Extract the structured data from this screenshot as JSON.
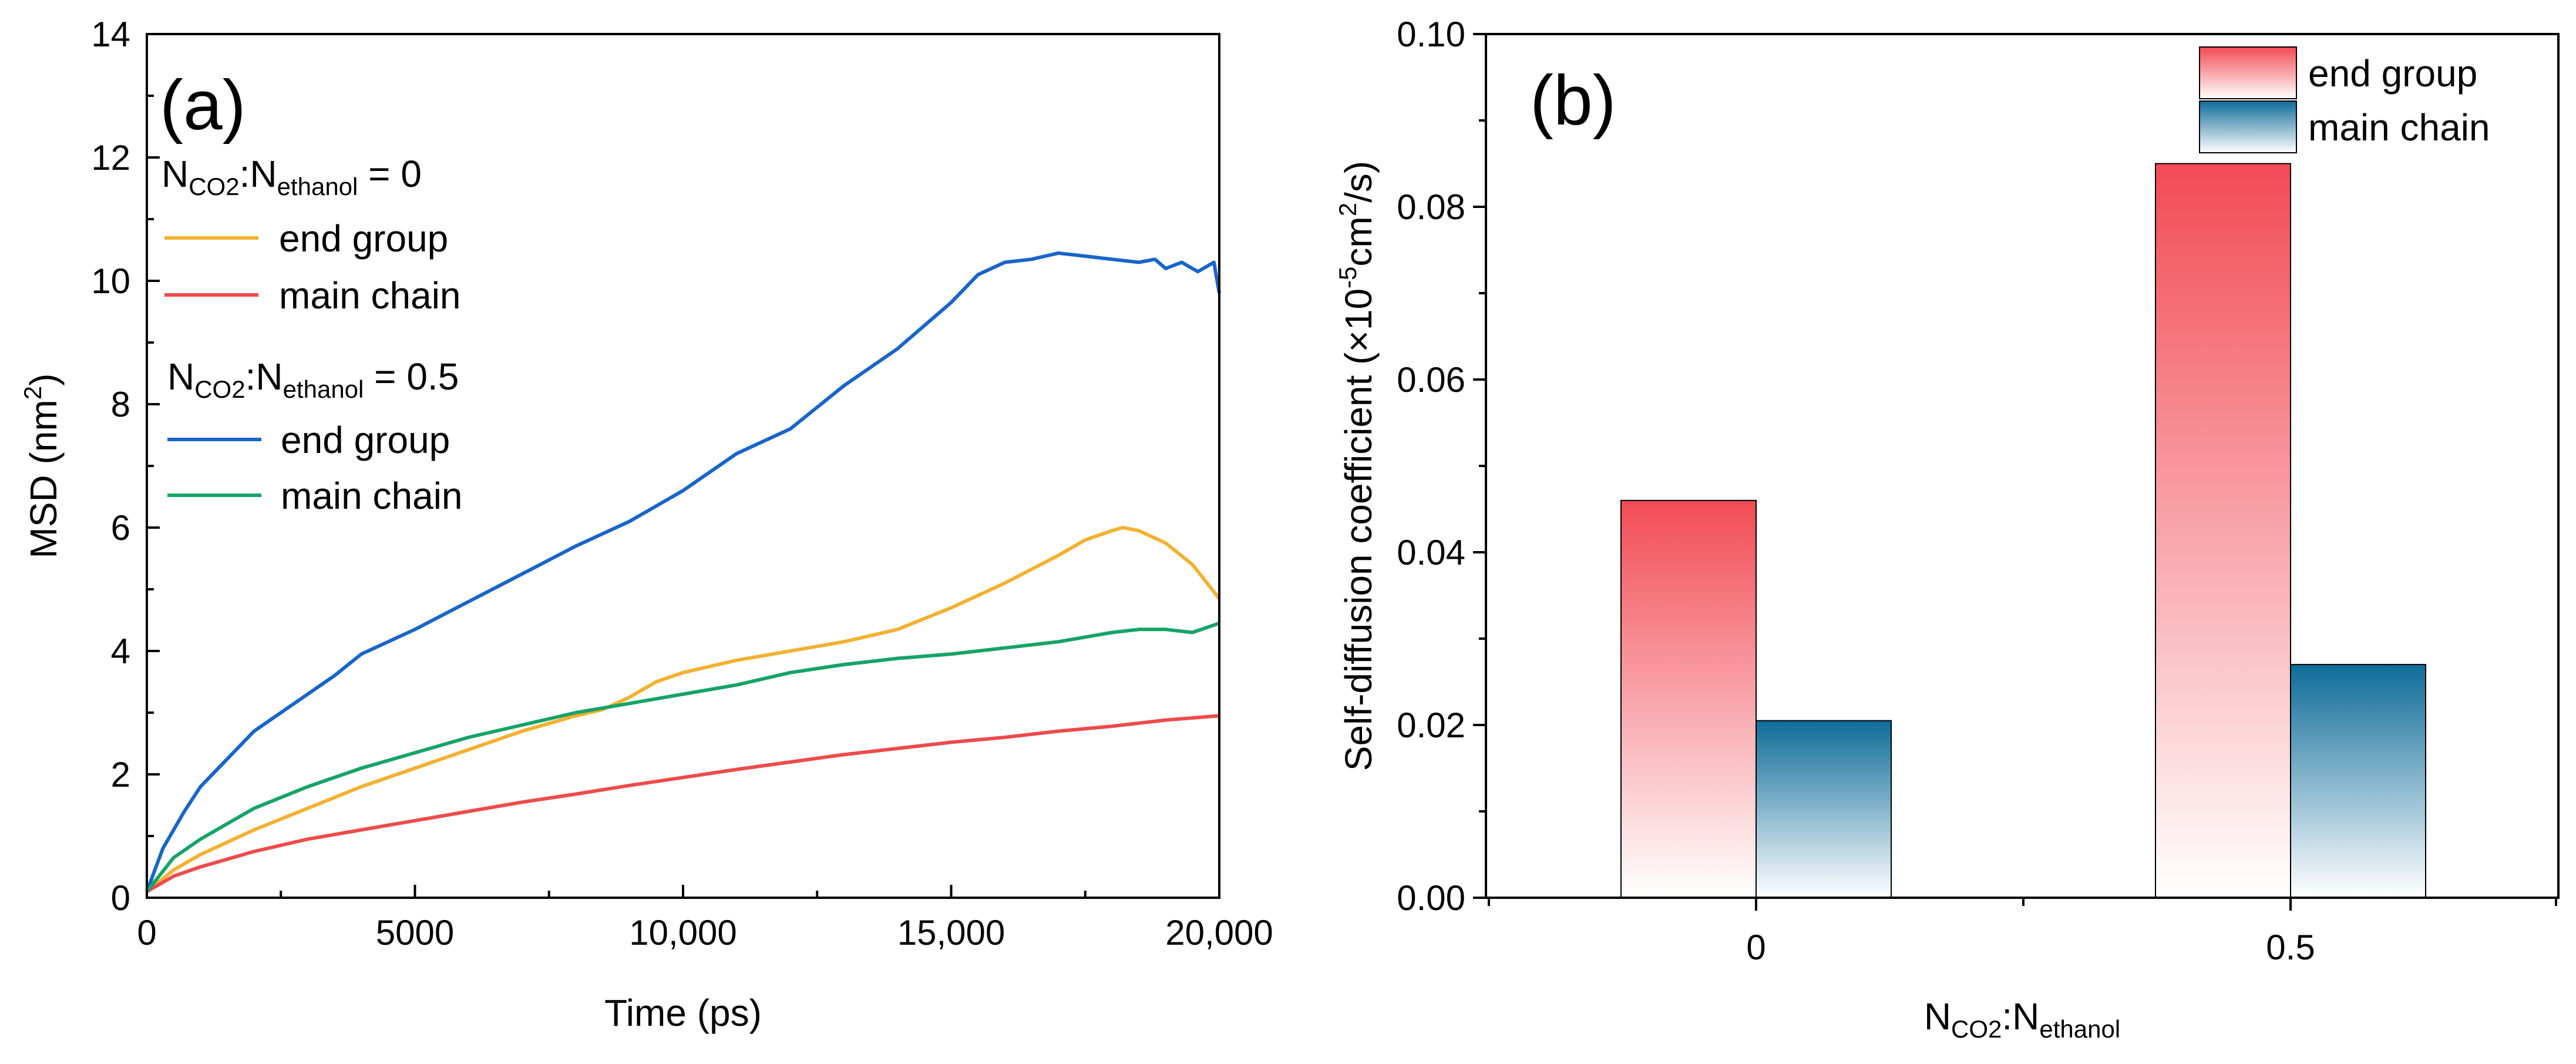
{
  "chart_data": [
    {
      "type": "line",
      "panel_label": "(a)",
      "xlabel": "Time (ps)",
      "ylabel": "MSD (nm",
      "ylabel_sup": "2",
      "ylabel_end": ")",
      "xlim": [
        0,
        20000
      ],
      "ylim": [
        0,
        14
      ],
      "x_ticks": [
        0,
        5000,
        10000,
        15000,
        20000
      ],
      "x_tick_labels": [
        "0",
        "5000",
        "10,000",
        "15,000",
        "20,000"
      ],
      "y_ticks": [
        0,
        2,
        4,
        6,
        8,
        10,
        12,
        14
      ],
      "y_tick_labels": [
        "0",
        "2",
        "4",
        "6",
        "8",
        "10",
        "12",
        "14"
      ],
      "legend_groups": [
        {
          "title_parts": [
            "N",
            "CO2",
            ":N",
            "ethanol",
            " = 0"
          ]
        },
        {
          "title_parts": [
            "N",
            "CO2",
            ":N",
            "ethanol",
            " = 0.5"
          ]
        }
      ],
      "series": [
        {
          "name": "end group",
          "group": 0,
          "color": "#F2B131",
          "x": [
            0,
            500,
            1000,
            2000,
            3000,
            4000,
            5000,
            6000,
            7000,
            8000,
            8500,
            9000,
            9500,
            10000,
            11000,
            12000,
            13000,
            14000,
            15000,
            16000,
            17000,
            17500,
            18000,
            18200,
            18500,
            19000,
            19500,
            20000
          ],
          "y": [
            0.1,
            0.45,
            0.7,
            1.1,
            1.45,
            1.8,
            2.1,
            2.4,
            2.7,
            2.95,
            3.05,
            3.25,
            3.5,
            3.65,
            3.85,
            4.0,
            4.15,
            4.35,
            4.7,
            5.1,
            5.55,
            5.8,
            5.95,
            6.0,
            5.95,
            5.75,
            5.4,
            4.85
          ]
        },
        {
          "name": "main chain",
          "group": 0,
          "color": "#EE4B4B",
          "x": [
            0,
            500,
            1000,
            2000,
            3000,
            4000,
            5000,
            6000,
            7000,
            8000,
            9000,
            10000,
            11000,
            12000,
            13000,
            14000,
            15000,
            16000,
            17000,
            18000,
            19000,
            20000
          ],
          "y": [
            0.1,
            0.35,
            0.5,
            0.75,
            0.95,
            1.1,
            1.25,
            1.4,
            1.55,
            1.68,
            1.82,
            1.95,
            2.08,
            2.2,
            2.32,
            2.42,
            2.52,
            2.6,
            2.7,
            2.78,
            2.88,
            2.95
          ]
        },
        {
          "name": "end group",
          "group": 1,
          "color": "#1865C9",
          "x": [
            0,
            300,
            700,
            1000,
            2000,
            3000,
            3500,
            4000,
            5000,
            6000,
            7000,
            8000,
            9000,
            10000,
            11000,
            12000,
            13000,
            14000,
            15000,
            15500,
            16000,
            16500,
            17000,
            17500,
            18000,
            18500,
            18800,
            19000,
            19300,
            19600,
            19900,
            20000
          ],
          "y": [
            0.1,
            0.8,
            1.4,
            1.8,
            2.7,
            3.3,
            3.6,
            3.95,
            4.35,
            4.8,
            5.25,
            5.7,
            6.1,
            6.6,
            7.2,
            7.6,
            8.3,
            8.9,
            9.65,
            10.1,
            10.3,
            10.35,
            10.45,
            10.4,
            10.35,
            10.3,
            10.35,
            10.2,
            10.3,
            10.15,
            10.3,
            9.8
          ]
        },
        {
          "name": "main chain",
          "group": 1,
          "color": "#16A367",
          "x": [
            0,
            500,
            1000,
            2000,
            3000,
            4000,
            5000,
            6000,
            7000,
            8000,
            9000,
            10000,
            11000,
            12000,
            13000,
            14000,
            15000,
            16000,
            17000,
            18000,
            18500,
            19000,
            19500,
            20000
          ],
          "y": [
            0.1,
            0.65,
            0.95,
            1.45,
            1.8,
            2.1,
            2.35,
            2.6,
            2.8,
            3.0,
            3.15,
            3.3,
            3.45,
            3.65,
            3.78,
            3.88,
            3.95,
            4.05,
            4.15,
            4.3,
            4.35,
            4.35,
            4.3,
            4.45
          ]
        }
      ]
    },
    {
      "type": "bar",
      "panel_label": "(b)",
      "xlabel_parts": [
        "N",
        "CO2",
        ":N",
        "ethanol"
      ],
      "ylabel_parts": [
        "Self-diffusion coefficient (×10",
        "-5",
        "cm",
        "2",
        "/s)"
      ],
      "categories": [
        "0",
        "0.5"
      ],
      "ylim": [
        0,
        0.1
      ],
      "y_ticks": [
        0,
        0.02,
        0.04,
        0.06,
        0.08,
        0.1
      ],
      "y_tick_labels": [
        "0.00",
        "0.02",
        "0.04",
        "0.06",
        "0.08",
        "0.10"
      ],
      "series": [
        {
          "name": "end group",
          "values": [
            0.046,
            0.085
          ],
          "color": "#F24B55"
        },
        {
          "name": "main chain",
          "values": [
            0.0205,
            0.027
          ],
          "color": "#0E6C99"
        }
      ]
    }
  ]
}
